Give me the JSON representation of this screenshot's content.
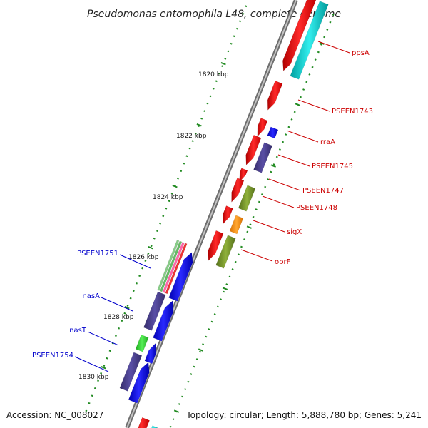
{
  "title": "Pseudomonas entomophila L48, complete genome",
  "footer": {
    "accession": "Accession: NC_008027",
    "topology": "Topology: circular; Length: 5,888,780 bp; Genes: 5,241"
  },
  "colors": {
    "backbone": "#8a8a8a",
    "tick": "#228b22",
    "label_right": "#cc0000",
    "label_left": "#0000cc",
    "red_gene": "#ff0000",
    "cyan_gene": "#00cccc",
    "blue_gene": "#0000ff",
    "slate_gene": "#4b3f8c",
    "olive_gene": "#6b8e23",
    "orange_gene": "#ff8c00",
    "green_gene": "#33cc33"
  },
  "kbp_labels": [
    "1820 kbp",
    "1822 kbp",
    "1824 kbp",
    "1826 kbp",
    "1828 kbp",
    "1830 kbp"
  ],
  "labels_right": [
    "ppsA",
    "PSEEN1743",
    "rraA",
    "PSEEN1745",
    "PSEEN1747",
    "PSEEN1748",
    "sigX",
    "oprF"
  ],
  "labels_left": [
    "PSEEN1751",
    "nasA",
    "nasT",
    "PSEEN1754"
  ]
}
